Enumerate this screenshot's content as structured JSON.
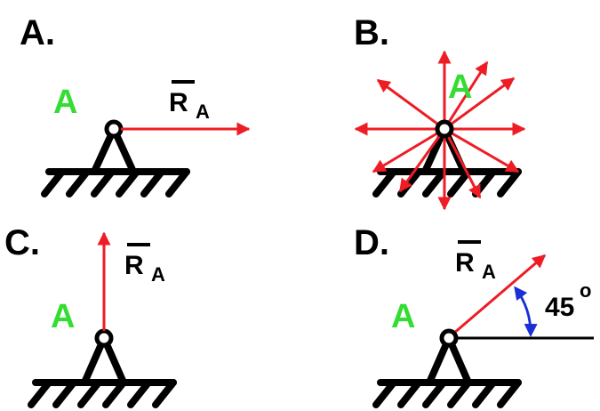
{
  "panels": {
    "a": {
      "option_label": "A.",
      "point_label": "A",
      "force_name": "R",
      "force_sub": "A"
    },
    "b": {
      "option_label": "B.",
      "point_label": "A"
    },
    "c": {
      "option_label": "C.",
      "point_label": "A",
      "force_name": "R",
      "force_sub": "A"
    },
    "d": {
      "option_label": "D.",
      "point_label": "A",
      "force_name": "R",
      "force_sub": "A",
      "angle_value": "45",
      "angle_unit": "o"
    }
  },
  "colors": {
    "force": "#ee1c24",
    "point_label": "#33dd33",
    "angle_arc": "#1a2fd6",
    "ink": "#000000"
  },
  "icons": {
    "support": "pin-support-icon",
    "ground": "hatched-ground-icon"
  }
}
